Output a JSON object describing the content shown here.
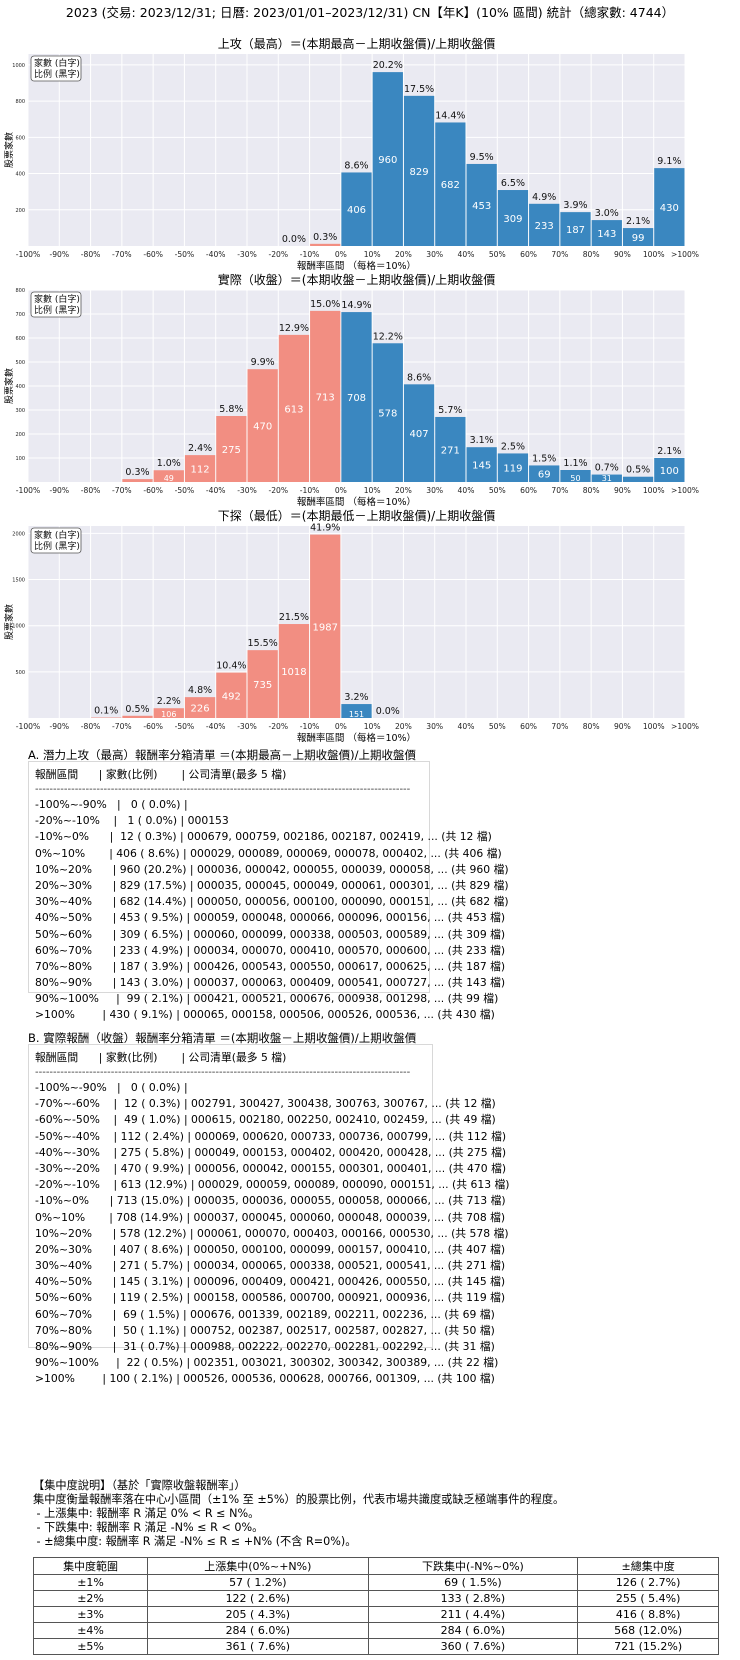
{
  "page_title": "2023 (交易: 2023/12/31; 日曆: 2023/01/01–2023/12/31) CN【年K】(10% 區間) 統計（總家數: 4744）",
  "chart_data": [
    {
      "type": "bar",
      "title": "上攻（最高）＝(本期最高－上期收盤價)/上期收盤價",
      "xlabel": "報酬率區間 （每格＝10%）",
      "ylabel": "股票家數",
      "legend_lines": [
        "家數 (白字)",
        "比例 (黑字)"
      ],
      "legend_position": "top-left",
      "ylim": [
        0,
        1060
      ],
      "yticks": [
        200,
        400,
        600,
        800,
        1000
      ],
      "xtick_labels": [
        "-100%",
        "-90%",
        "-80%",
        "-70%",
        "-60%",
        "-50%",
        "-40%",
        "-30%",
        "-20%",
        "-10%",
        "0%",
        "10%",
        "20%",
        "30%",
        "40%",
        "50%",
        "60%",
        "70%",
        "80%",
        "90%",
        "100%",
        ">100%"
      ],
      "bars": [
        {
          "bin": 8,
          "value": 0,
          "pct": "0.0%",
          "color": "#f28e82"
        },
        {
          "bin": 9,
          "value": 12,
          "pct": "0.3%",
          "color": "#f28e82"
        },
        {
          "bin": 10,
          "value": 406,
          "pct": "8.6%",
          "color": "#3a87c0"
        },
        {
          "bin": 11,
          "value": 960,
          "pct": "20.2%",
          "color": "#3a87c0"
        },
        {
          "bin": 12,
          "value": 829,
          "pct": "17.5%",
          "color": "#3a87c0"
        },
        {
          "bin": 13,
          "value": 682,
          "pct": "14.4%",
          "color": "#3a87c0"
        },
        {
          "bin": 14,
          "value": 453,
          "pct": "9.5%",
          "color": "#3a87c0"
        },
        {
          "bin": 15,
          "value": 309,
          "pct": "6.5%",
          "color": "#3a87c0"
        },
        {
          "bin": 16,
          "value": 233,
          "pct": "4.9%",
          "color": "#3a87c0"
        },
        {
          "bin": 17,
          "value": 187,
          "pct": "3.9%",
          "color": "#3a87c0"
        },
        {
          "bin": 18,
          "value": 143,
          "pct": "3.0%",
          "color": "#3a87c0"
        },
        {
          "bin": 19,
          "value": 99,
          "pct": "2.1%",
          "color": "#3a87c0"
        },
        {
          "bin": 20,
          "value": 430,
          "pct": "9.1%",
          "color": "#3a87c0"
        }
      ]
    },
    {
      "type": "bar",
      "title": "實際（收盤）＝(本期收盤－上期收盤價)/上期收盤價",
      "xlabel": "報酬率區間 （每格＝10%）",
      "ylabel": "股票家數",
      "legend_lines": [
        "家數 (白字)",
        "比例 (黑字)"
      ],
      "legend_position": "top-left",
      "ylim": [
        0,
        800
      ],
      "yticks": [
        100,
        200,
        300,
        400,
        500,
        600,
        700,
        800
      ],
      "xtick_labels": [
        "-100%",
        "-90%",
        "-80%",
        "-70%",
        "-60%",
        "-50%",
        "-40%",
        "-30%",
        "-20%",
        "-10%",
        "0%",
        "10%",
        "20%",
        "30%",
        "40%",
        "50%",
        "60%",
        "70%",
        "80%",
        "90%",
        "100%",
        ">100%"
      ],
      "bars": [
        {
          "bin": 3,
          "value": 12,
          "pct": "0.3%",
          "color": "#f28e82"
        },
        {
          "bin": 4,
          "value": 49,
          "pct": "1.0%",
          "color": "#f28e82"
        },
        {
          "bin": 5,
          "value": 112,
          "pct": "2.4%",
          "color": "#f28e82"
        },
        {
          "bin": 6,
          "value": 275,
          "pct": "5.8%",
          "color": "#f28e82"
        },
        {
          "bin": 7,
          "value": 470,
          "pct": "9.9%",
          "color": "#f28e82"
        },
        {
          "bin": 8,
          "value": 613,
          "pct": "12.9%",
          "color": "#f28e82"
        },
        {
          "bin": 9,
          "value": 713,
          "pct": "15.0%",
          "color": "#f28e82"
        },
        {
          "bin": 10,
          "value": 708,
          "pct": "14.9%",
          "color": "#3a87c0"
        },
        {
          "bin": 11,
          "value": 578,
          "pct": "12.2%",
          "color": "#3a87c0"
        },
        {
          "bin": 12,
          "value": 407,
          "pct": "8.6%",
          "color": "#3a87c0"
        },
        {
          "bin": 13,
          "value": 271,
          "pct": "5.7%",
          "color": "#3a87c0"
        },
        {
          "bin": 14,
          "value": 145,
          "pct": "3.1%",
          "color": "#3a87c0"
        },
        {
          "bin": 15,
          "value": 119,
          "pct": "2.5%",
          "color": "#3a87c0"
        },
        {
          "bin": 16,
          "value": 69,
          "pct": "1.5%",
          "color": "#3a87c0"
        },
        {
          "bin": 17,
          "value": 50,
          "pct": "1.1%",
          "color": "#3a87c0"
        },
        {
          "bin": 18,
          "value": 31,
          "pct": "0.7%",
          "color": "#3a87c0"
        },
        {
          "bin": 19,
          "value": 22,
          "pct": "0.5%",
          "color": "#3a87c0"
        },
        {
          "bin": 20,
          "value": 100,
          "pct": "2.1%",
          "color": "#3a87c0"
        }
      ]
    },
    {
      "type": "bar",
      "title": "下探（最低）＝(本期最低－上期收盤價)/上期收盤價",
      "xlabel": "報酬率區間 （每格＝10%）",
      "ylabel": "股票家數",
      "legend_lines": [
        "家數 (白字)",
        "比例 (黑字)"
      ],
      "legend_position": "top-left",
      "ylim": [
        0,
        2080
      ],
      "yticks": [
        500,
        1000,
        1500,
        2000
      ],
      "xtick_labels": [
        "-100%",
        "-90%",
        "-80%",
        "-70%",
        "-60%",
        "-50%",
        "-40%",
        "-30%",
        "-20%",
        "-10%",
        "0%",
        "10%",
        "20%",
        "30%",
        "40%",
        "50%",
        "60%",
        "70%",
        "80%",
        "90%",
        "100%",
        ">100%"
      ],
      "bars": [
        {
          "bin": 2,
          "value": 5,
          "pct": "0.1%",
          "color": "#f28e82"
        },
        {
          "bin": 3,
          "value": 24,
          "pct": "0.5%",
          "color": "#f28e82"
        },
        {
          "bin": 4,
          "value": 106,
          "pct": "2.2%",
          "color": "#f28e82"
        },
        {
          "bin": 5,
          "value": 226,
          "pct": "4.8%",
          "color": "#f28e82"
        },
        {
          "bin": 6,
          "value": 492,
          "pct": "10.4%",
          "color": "#f28e82"
        },
        {
          "bin": 7,
          "value": 735,
          "pct": "15.5%",
          "color": "#f28e82"
        },
        {
          "bin": 8,
          "value": 1018,
          "pct": "21.5%",
          "color": "#f28e82"
        },
        {
          "bin": 9,
          "value": 1987,
          "pct": "41.9%",
          "color": "#f28e82"
        },
        {
          "bin": 10,
          "value": 151,
          "pct": "3.2%",
          "color": "#3a87c0"
        },
        {
          "bin": 11,
          "value": 0,
          "pct": "0.0%",
          "color": "#3a87c0"
        }
      ]
    }
  ],
  "section_a": {
    "title": "A. 潛力上攻（最高）報酬率分箱清單 ＝(本期最高－上期收盤價)/上期收盤價",
    "header": "報酬區間      | 家數(比例)       | 公司清單(最多 5 檔)",
    "separator": "--------------------------------------------------------------------------------------------------------",
    "rows": [
      "-100%~-90%   |   0 ( 0.0%) |",
      "-20%~-10%    |   1 ( 0.0%) | 000153",
      "-10%~0%      |  12 ( 0.3%) | 000679, 000759, 002186, 002187, 002419, ... (共 12 檔)",
      "0%~10%       | 406 ( 8.6%) | 000029, 000089, 000069, 000078, 000402, ... (共 406 檔)",
      "10%~20%      | 960 (20.2%) | 000036, 000042, 000055, 000039, 000058, ... (共 960 檔)",
      "20%~30%      | 829 (17.5%) | 000035, 000045, 000049, 000061, 000301, ... (共 829 檔)",
      "30%~40%      | 682 (14.4%) | 000050, 000056, 000100, 000090, 000151, ... (共 682 檔)",
      "40%~50%      | 453 ( 9.5%) | 000059, 000048, 000066, 000096, 000156, ... (共 453 檔)",
      "50%~60%      | 309 ( 6.5%) | 000060, 000099, 000338, 000503, 000589, ... (共 309 檔)",
      "60%~70%      | 233 ( 4.9%) | 000034, 000070, 000410, 000570, 000600, ... (共 233 檔)",
      "70%~80%      | 187 ( 3.9%) | 000426, 000543, 000550, 000617, 000625, ... (共 187 檔)",
      "80%~90%      | 143 ( 3.0%) | 000037, 000063, 000409, 000541, 000727, ... (共 143 檔)",
      "90%~100%     |  99 ( 2.1%) | 000421, 000521, 000676, 000938, 001298, ... (共 99 檔)",
      ">100%        | 430 ( 9.1%) | 000065, 000158, 000506, 000526, 000536, ... (共 430 檔)"
    ]
  },
  "section_b": {
    "title": "B. 實際報酬（收盤）報酬率分箱清單 ＝(本期收盤－上期收盤價)/上期收盤價",
    "header": "報酬區間      | 家數(比例)       | 公司清單(最多 5 檔)",
    "separator": "--------------------------------------------------------------------------------------------------------",
    "rows": [
      "-100%~-90%   |   0 ( 0.0%) |",
      "-70%~-60%    |  12 ( 0.3%) | 002791, 300427, 300438, 300763, 300767, ... (共 12 檔)",
      "-60%~-50%    |  49 ( 1.0%) | 000615, 002180, 002250, 002410, 002459, ... (共 49 檔)",
      "-50%~-40%    | 112 ( 2.4%) | 000069, 000620, 000733, 000736, 000799, ... (共 112 檔)",
      "-40%~-30%    | 275 ( 5.8%) | 000049, 000153, 000402, 000420, 000428, ... (共 275 檔)",
      "-30%~-20%    | 470 ( 9.9%) | 000056, 000042, 000155, 000301, 000401, ... (共 470 檔)",
      "-20%~-10%    | 613 (12.9%) | 000029, 000059, 000089, 000090, 000151, ... (共 613 檔)",
      "-10%~0%      | 713 (15.0%) | 000035, 000036, 000055, 000058, 000066, ... (共 713 檔)",
      "0%~10%       | 708 (14.9%) | 000037, 000045, 000060, 000048, 000039, ... (共 708 檔)",
      "10%~20%      | 578 (12.2%) | 000061, 000070, 000403, 000166, 000530, ... (共 578 檔)",
      "20%~30%      | 407 ( 8.6%) | 000050, 000100, 000099, 000157, 000410, ... (共 407 檔)",
      "30%~40%      | 271 ( 5.7%) | 000034, 000065, 000338, 000521, 000541, ... (共 271 檔)",
      "40%~50%      | 145 ( 3.1%) | 000096, 000409, 000421, 000426, 000550, ... (共 145 檔)",
      "50%~60%      | 119 ( 2.5%) | 000158, 000586, 000700, 000921, 000936, ... (共 119 檔)",
      "60%~70%      |  69 ( 1.5%) | 000676, 001339, 002189, 002211, 002236, ... (共 69 檔)",
      "70%~80%      |  50 ( 1.1%) | 000752, 002387, 002517, 002587, 002827, ... (共 50 檔)",
      "80%~90%      |  31 ( 0.7%) | 000988, 002222, 002270, 002281, 002292, ... (共 31 檔)",
      "90%~100%     |  22 ( 0.5%) | 002351, 003021, 300302, 300342, 300389, ... (共 22 檔)",
      ">100%        | 100 ( 2.1%) | 000526, 000536, 000628, 000766, 001309, ... (共 100 檔)"
    ]
  },
  "concentration": {
    "lines": [
      "【集中度說明】（基於「實際收盤報酬率」）",
      "集中度衡量報酬率落在中心小區間（±1% 至 ±5%）的股票比例，代表市場共識度或缺乏極端事件的程度。",
      " - 上漲集中: 報酬率 R 滿足 0% < R ≤ N%。",
      " - 下跌集中: 報酬率 R 滿足 -N% ≤ R < 0%。",
      " - ±總集中度: 報酬率 R 滿足 -N% ≤ R ≤ +N% (不含 R=0%)。"
    ],
    "table_headers": [
      "集中度範圍",
      "上漲集中(0%~+N%)",
      "下跌集中(-N%~0%)",
      "±總集中度"
    ],
    "table_rows": [
      [
        "±1%",
        "57 ( 1.2%)",
        "69 ( 1.5%)",
        "126 ( 2.7%)"
      ],
      [
        "±2%",
        "122 ( 2.6%)",
        "133 ( 2.8%)",
        "255 ( 5.4%)"
      ],
      [
        "±3%",
        "205 ( 4.3%)",
        "211 ( 4.4%)",
        "416 ( 8.8%)"
      ],
      [
        "±4%",
        "284 ( 6.0%)",
        "284 ( 6.0%)",
        "568 (12.0%)"
      ],
      [
        "±5%",
        "361 ( 7.6%)",
        "360 ( 7.6%)",
        "721 (15.2%)"
      ]
    ]
  }
}
